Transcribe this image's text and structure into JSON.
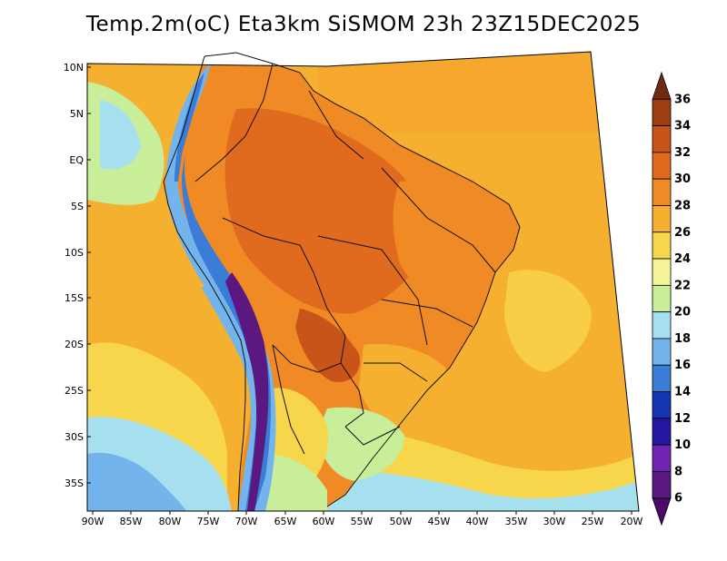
{
  "title": "Temp.2m(oC) Eta3km SiSMOM 23h 23Z15DEC2025",
  "map": {
    "variable": "2 m air temperature",
    "units": "°C",
    "x_axis_labels": [
      "90W",
      "85W",
      "80W",
      "75W",
      "70W",
      "65W",
      "60W",
      "55W",
      "50W",
      "45W",
      "40W",
      "35W",
      "30W",
      "25W",
      "20W"
    ],
    "y_axis_labels": [
      "10N",
      "5N",
      "EQ",
      "5S",
      "10S",
      "15S",
      "20S",
      "25S",
      "30S",
      "35S"
    ],
    "colorbar": {
      "levels": [
        "36",
        "34",
        "32",
        "30",
        "28",
        "26",
        "24",
        "22",
        "20",
        "18",
        "16",
        "14",
        "12",
        "10",
        "8",
        "6"
      ],
      "colors": [
        "#6e2a12",
        "#9c3e12",
        "#c8541a",
        "#e06a1e",
        "#f08a24",
        "#f6b030",
        "#f8d64c",
        "#f6f49a",
        "#c8ee9a",
        "#a6e0ee",
        "#74b4ec",
        "#3a7cd6",
        "#1434b0",
        "#2416a0",
        "#7024b4",
        "#5a1880",
        "#4a0a6a"
      ]
    }
  }
}
